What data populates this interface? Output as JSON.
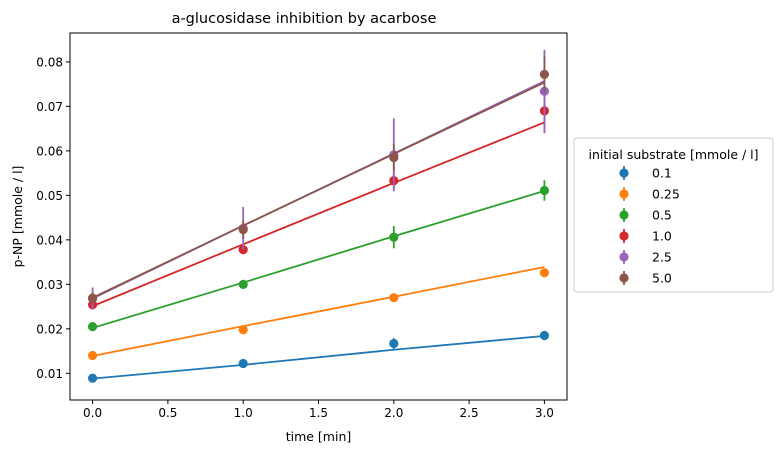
{
  "chart_data": {
    "type": "scatter",
    "title": "a-glucosidase inhibition by acarbose",
    "xlabel": "time [min]",
    "ylabel": "p-NP [mmole / l]",
    "xlim": [
      -0.15,
      3.15
    ],
    "ylim": [
      0.004,
      0.0865
    ],
    "xticks": [
      0.0,
      0.5,
      1.0,
      1.5,
      2.0,
      2.5,
      3.0
    ],
    "xtick_labels": [
      "0.0",
      "0.5",
      "1.0",
      "1.5",
      "2.0",
      "2.5",
      "3.0"
    ],
    "yticks": [
      0.01,
      0.02,
      0.03,
      0.04,
      0.05,
      0.06,
      0.07,
      0.08
    ],
    "ytick_labels": [
      "0.01",
      "0.02",
      "0.03",
      "0.04",
      "0.05",
      "0.06",
      "0.07",
      "0.08"
    ],
    "grid": false,
    "legend": {
      "title": "initial substrate [mmole / l]",
      "placement": "center-right-outside"
    },
    "x": [
      0,
      1,
      2,
      3
    ],
    "series": [
      {
        "name": "0.1",
        "color": "#1f77b4",
        "values": [
          0.0089,
          0.0122,
          0.0167,
          0.0185
        ],
        "errors": [
          0.0005,
          0.0008,
          0.0012,
          0.0009
        ],
        "fit": [
          0.0088,
          0.0119,
          0.0153,
          0.0184
        ]
      },
      {
        "name": "0.25",
        "color": "#ff7f0e",
        "values": [
          0.014,
          0.0198,
          0.027,
          0.0326
        ],
        "errors": [
          0.0004,
          0.0006,
          0.0007,
          0.0008
        ],
        "fit": [
          0.0139,
          0.0206,
          0.0272,
          0.0339
        ]
      },
      {
        "name": "0.5",
        "color": "#2ca02c",
        "values": [
          0.0205,
          0.03,
          0.0406,
          0.0511
        ],
        "errors": [
          0.0004,
          0.001,
          0.0025,
          0.0023
        ],
        "fit": [
          0.0202,
          0.0304,
          0.0408,
          0.051
        ]
      },
      {
        "name": "1.0",
        "color": "#d62728",
        "values": [
          0.0254,
          0.0378,
          0.0533,
          0.069
        ],
        "errors": [
          0.0006,
          0.0009,
          0.002,
          0.005
        ],
        "fit": [
          0.0251,
          0.039,
          0.0528,
          0.0664
        ]
      },
      {
        "name": "2.5",
        "color": "#9467bd",
        "values": [
          0.0268,
          0.0426,
          0.0591,
          0.0734
        ],
        "errors": [
          0.0025,
          0.0048,
          0.0082,
          0.0093
        ],
        "fit": [
          0.0268,
          0.0432,
          0.0594,
          0.0757
        ]
      },
      {
        "name": "5.0",
        "color": "#8c564b",
        "values": [
          0.0269,
          0.0423,
          0.0585,
          0.0772
        ],
        "errors": [
          0.0012,
          0.002,
          0.003,
          0.004
        ],
        "fit": [
          0.027,
          0.0432,
          0.0593,
          0.0754
        ]
      }
    ]
  }
}
